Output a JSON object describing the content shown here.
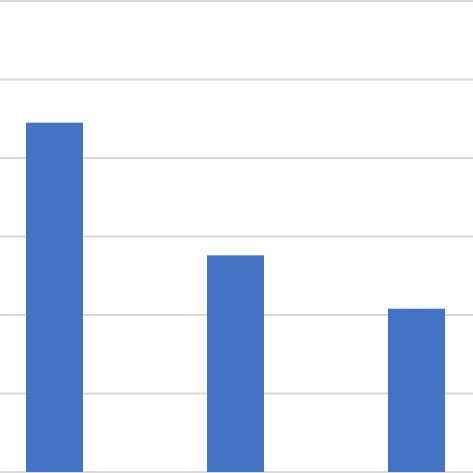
{
  "chart_data": {
    "type": "bar",
    "categories": [
      null,
      null,
      null
    ],
    "values": [
      4.45,
      2.76,
      2.08
    ],
    "color": "#4472c4",
    "ylim": [
      0,
      6
    ],
    "yticks": [
      0,
      1,
      2,
      3,
      4,
      5,
      6
    ],
    "grid": true
  }
}
